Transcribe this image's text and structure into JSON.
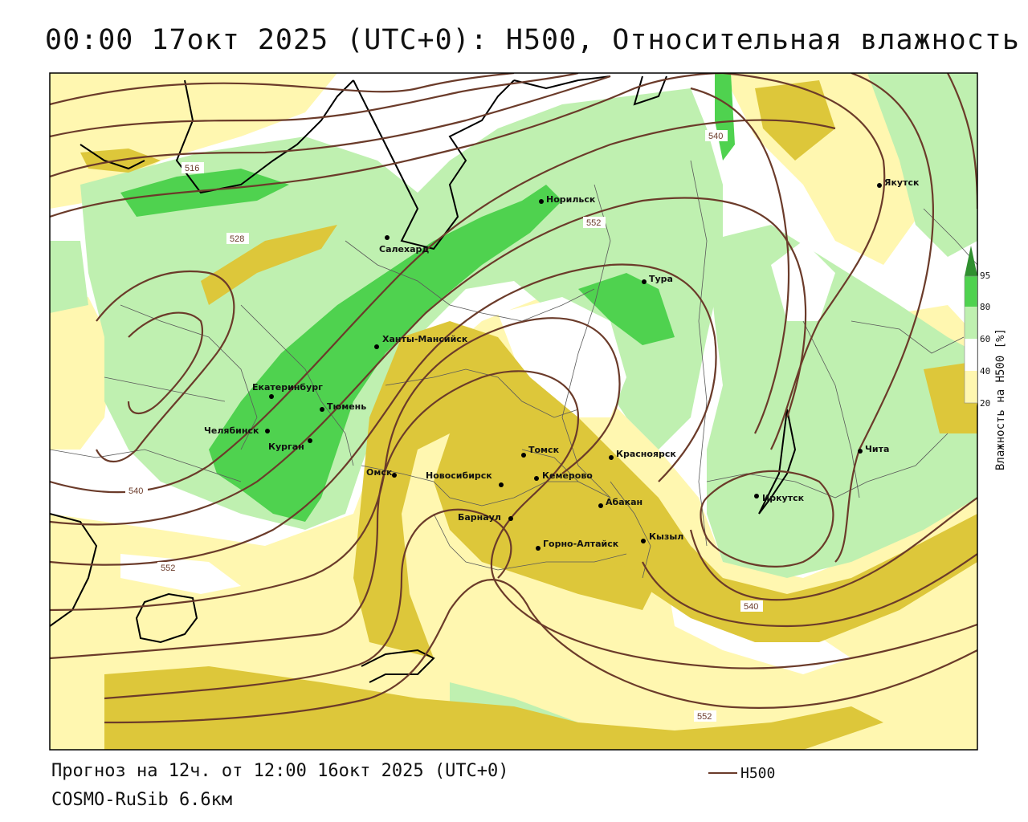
{
  "title": "00:00 17окт 2025 (UTC+0): H500, Относительная влажность",
  "footer": {
    "forecast": "Прогноз на 12ч. от 12:00 16окт 2025 (UTC+0)",
    "model": "COSMO-RuSib 6.6км",
    "legend_label": "H500"
  },
  "colorbar": {
    "title": "Влажность на H500 [%]",
    "ticks": [
      "95",
      "80",
      "60",
      "40",
      "20"
    ],
    "colors": {
      "gt95": "#2f8f2f",
      "80_95": "#4fd24f",
      "60_80": "#bff0b0",
      "40_60": "#ffffff",
      "20_40": "#fff7b0",
      "lt20": "#ddc73a"
    }
  },
  "contour_labels": [
    "516",
    "528",
    "540",
    "552",
    "540",
    "552",
    "540",
    "552"
  ],
  "cities": [
    {
      "name": "Норильск"
    },
    {
      "name": "Якутск"
    },
    {
      "name": "Салехард"
    },
    {
      "name": "Тура"
    },
    {
      "name": "Ханты-Мансийск"
    },
    {
      "name": "Екатеринбург"
    },
    {
      "name": "Тюмень"
    },
    {
      "name": "Челябинск"
    },
    {
      "name": "Курган"
    },
    {
      "name": "Омск"
    },
    {
      "name": "Томск"
    },
    {
      "name": "Красноярск"
    },
    {
      "name": "Новосибирск"
    },
    {
      "name": "Кемерово"
    },
    {
      "name": "Барнаул"
    },
    {
      "name": "Абакан"
    },
    {
      "name": "Горно-Алтайск"
    },
    {
      "name": "Кызыл"
    },
    {
      "name": "Иркутск"
    },
    {
      "name": "Чита"
    }
  ],
  "colors": {
    "contour": "#6b3b2a",
    "coast": "#000000",
    "border": "#5a5a5a"
  }
}
